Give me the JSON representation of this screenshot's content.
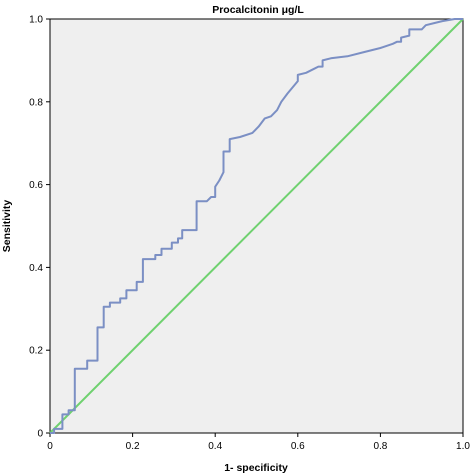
{
  "chart_data": {
    "type": "line",
    "title": "Procalcitonin  μg/L",
    "xlabel": "1- specificity",
    "ylabel": "Sensitivity",
    "xlim": [
      0,
      1
    ],
    "ylim": [
      0,
      1
    ],
    "x_ticks": [
      "0",
      "0.2",
      "0.4",
      "0.6",
      "0.8",
      "1.0"
    ],
    "y_ticks": [
      "0",
      "0.2",
      "0.4",
      "0.6",
      "0.8",
      "1.0"
    ],
    "x_tick_values": [
      0,
      0.2,
      0.4,
      0.6,
      0.8,
      1.0
    ],
    "y_tick_values": [
      0,
      0.2,
      0.4,
      0.6,
      0.8,
      1.0
    ],
    "grid": false,
    "background_color": "#efefef",
    "series": [
      {
        "color": "#7b8fc4",
        "points": [
          [
            0.0,
            0.0
          ],
          [
            0.01,
            0.0
          ],
          [
            0.01,
            0.01
          ],
          [
            0.03,
            0.01
          ],
          [
            0.03,
            0.03
          ],
          [
            0.03,
            0.045
          ],
          [
            0.045,
            0.045
          ],
          [
            0.045,
            0.055
          ],
          [
            0.06,
            0.055
          ],
          [
            0.06,
            0.155
          ],
          [
            0.09,
            0.155
          ],
          [
            0.09,
            0.175
          ],
          [
            0.115,
            0.175
          ],
          [
            0.115,
            0.255
          ],
          [
            0.13,
            0.255
          ],
          [
            0.13,
            0.305
          ],
          [
            0.145,
            0.305
          ],
          [
            0.145,
            0.315
          ],
          [
            0.17,
            0.315
          ],
          [
            0.17,
            0.325
          ],
          [
            0.185,
            0.325
          ],
          [
            0.185,
            0.345
          ],
          [
            0.21,
            0.345
          ],
          [
            0.21,
            0.365
          ],
          [
            0.225,
            0.365
          ],
          [
            0.225,
            0.42
          ],
          [
            0.255,
            0.42
          ],
          [
            0.255,
            0.43
          ],
          [
            0.27,
            0.43
          ],
          [
            0.27,
            0.445
          ],
          [
            0.295,
            0.445
          ],
          [
            0.295,
            0.46
          ],
          [
            0.31,
            0.46
          ],
          [
            0.31,
            0.47
          ],
          [
            0.32,
            0.47
          ],
          [
            0.32,
            0.49
          ],
          [
            0.355,
            0.49
          ],
          [
            0.355,
            0.56
          ],
          [
            0.38,
            0.56
          ],
          [
            0.39,
            0.57
          ],
          [
            0.4,
            0.57
          ],
          [
            0.4,
            0.595
          ],
          [
            0.41,
            0.61
          ],
          [
            0.42,
            0.63
          ],
          [
            0.42,
            0.68
          ],
          [
            0.435,
            0.68
          ],
          [
            0.435,
            0.71
          ],
          [
            0.46,
            0.715
          ],
          [
            0.49,
            0.725
          ],
          [
            0.505,
            0.74
          ],
          [
            0.52,
            0.76
          ],
          [
            0.535,
            0.765
          ],
          [
            0.55,
            0.78
          ],
          [
            0.56,
            0.8
          ],
          [
            0.575,
            0.82
          ],
          [
            0.6,
            0.85
          ],
          [
            0.6,
            0.865
          ],
          [
            0.62,
            0.87
          ],
          [
            0.64,
            0.88
          ],
          [
            0.65,
            0.885
          ],
          [
            0.66,
            0.885
          ],
          [
            0.66,
            0.9
          ],
          [
            0.68,
            0.905
          ],
          [
            0.72,
            0.91
          ],
          [
            0.76,
            0.92
          ],
          [
            0.8,
            0.93
          ],
          [
            0.83,
            0.94
          ],
          [
            0.84,
            0.945
          ],
          [
            0.85,
            0.945
          ],
          [
            0.85,
            0.955
          ],
          [
            0.87,
            0.96
          ],
          [
            0.87,
            0.975
          ],
          [
            0.9,
            0.975
          ],
          [
            0.91,
            0.985
          ],
          [
            0.93,
            0.99
          ],
          [
            0.95,
            0.995
          ],
          [
            0.98,
            1.0
          ],
          [
            1.0,
            1.0
          ]
        ]
      },
      {
        "color": "#6fd16f",
        "points": [
          [
            0,
            0
          ],
          [
            1,
            1
          ]
        ]
      }
    ]
  }
}
